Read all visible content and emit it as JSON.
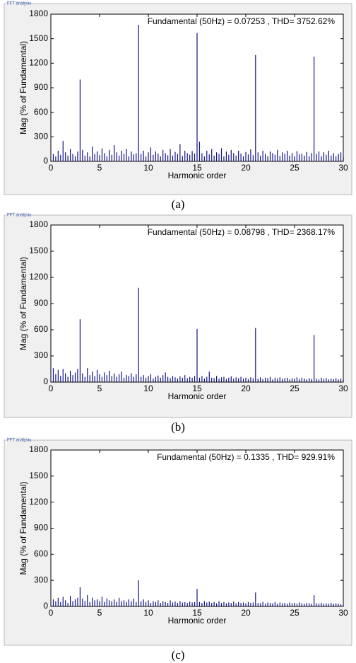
{
  "chart_data": [
    {
      "type": "bar",
      "panel_label": "FFT analysis",
      "annotation": "Fundamental (50Hz) = 0.07253 , THD= 3752.62%",
      "xlabel": "Harmonic order",
      "ylabel": "Mag (% of Fundamental)",
      "caption": "(a)",
      "color": "#10108a",
      "xlim": [
        0,
        30
      ],
      "ylim": [
        0,
        1800
      ],
      "xticks": [
        0,
        5,
        10,
        15,
        20,
        25,
        30
      ],
      "yticks": [
        0,
        300,
        600,
        900,
        1200,
        1500,
        1800
      ],
      "x": [
        0,
        0.25,
        0.5,
        0.75,
        1,
        1.25,
        1.5,
        1.75,
        2,
        2.25,
        2.5,
        2.75,
        3,
        3.25,
        3.5,
        3.75,
        4,
        4.25,
        4.5,
        4.75,
        5,
        5.25,
        5.5,
        5.75,
        6,
        6.25,
        6.5,
        6.75,
        7,
        7.25,
        7.5,
        7.75,
        8,
        8.25,
        8.5,
        8.75,
        9,
        9.25,
        9.5,
        9.75,
        10,
        10.25,
        10.5,
        10.75,
        11,
        11.25,
        11.5,
        11.75,
        12,
        12.25,
        12.5,
        12.75,
        13,
        13.25,
        13.5,
        13.75,
        14,
        14.25,
        14.5,
        14.75,
        15,
        15.25,
        15.5,
        15.75,
        16,
        16.25,
        16.5,
        16.75,
        17,
        17.25,
        17.5,
        17.75,
        18,
        18.25,
        18.5,
        18.75,
        19,
        19.25,
        19.5,
        19.75,
        20,
        20.25,
        20.5,
        20.75,
        21,
        21.25,
        21.5,
        21.75,
        22,
        22.25,
        22.5,
        22.75,
        23,
        23.25,
        23.5,
        23.75,
        24,
        24.25,
        24.5,
        24.75,
        25,
        25.25,
        25.5,
        25.75,
        26,
        26.25,
        26.5,
        26.75,
        27,
        27.25,
        27.5,
        27.75,
        28,
        28.25,
        28.5,
        28.75,
        29,
        29.25,
        29.5,
        29.75,
        30
      ],
      "values": [
        20,
        90,
        60,
        130,
        80,
        250,
        110,
        70,
        150,
        90,
        60,
        120,
        1000,
        140,
        70,
        110,
        60,
        180,
        90,
        120,
        75,
        160,
        100,
        60,
        140,
        80,
        200,
        110,
        70,
        130,
        90,
        150,
        60,
        120,
        85,
        100,
        1670,
        90,
        130,
        60,
        110,
        170,
        80,
        120,
        95,
        60,
        140,
        100,
        75,
        150,
        70,
        115,
        90,
        210,
        65,
        130,
        100,
        80,
        125,
        95,
        1570,
        240,
        100,
        60,
        130,
        85,
        150,
        70,
        110,
        90,
        160,
        60,
        120,
        80,
        140,
        100,
        70,
        130,
        95,
        60,
        115,
        85,
        145,
        75,
        1300,
        110,
        70,
        130,
        90,
        60,
        120,
        100,
        80,
        140,
        65,
        110,
        90,
        130,
        70,
        100,
        60,
        125,
        85,
        95,
        70,
        115,
        60,
        100,
        1280,
        90,
        120,
        60,
        110,
        80,
        130,
        70,
        100,
        60,
        90,
        110,
        50
      ]
    },
    {
      "type": "bar",
      "panel_label": "FFT analysis",
      "annotation": "Fundamental (50Hz) = 0.08798 , THD= 2368.17%",
      "xlabel": "Harmonic order",
      "ylabel": "Mag (% of Fundamental)",
      "caption": "(b)",
      "color": "#10108a",
      "xlim": [
        0,
        30
      ],
      "ylim": [
        0,
        1800
      ],
      "xticks": [
        0,
        5,
        10,
        15,
        20,
        25,
        30
      ],
      "yticks": [
        0,
        300,
        600,
        900,
        1200,
        1500,
        1800
      ],
      "x": [
        0,
        0.25,
        0.5,
        0.75,
        1,
        1.25,
        1.5,
        1.75,
        2,
        2.25,
        2.5,
        2.75,
        3,
        3.25,
        3.5,
        3.75,
        4,
        4.25,
        4.5,
        4.75,
        5,
        5.25,
        5.5,
        5.75,
        6,
        6.25,
        6.5,
        6.75,
        7,
        7.25,
        7.5,
        7.75,
        8,
        8.25,
        8.5,
        8.75,
        9,
        9.25,
        9.5,
        9.75,
        10,
        10.25,
        10.5,
        10.75,
        11,
        11.25,
        11.5,
        11.75,
        12,
        12.25,
        12.5,
        12.75,
        13,
        13.25,
        13.5,
        13.75,
        14,
        14.25,
        14.5,
        14.75,
        15,
        15.25,
        15.5,
        15.75,
        16,
        16.25,
        16.5,
        16.75,
        17,
        17.25,
        17.5,
        17.75,
        18,
        18.25,
        18.5,
        18.75,
        19,
        19.25,
        19.5,
        19.75,
        20,
        20.25,
        20.5,
        20.75,
        21,
        21.25,
        21.5,
        21.75,
        22,
        22.25,
        22.5,
        22.75,
        23,
        23.25,
        23.5,
        23.75,
        24,
        24.25,
        24.5,
        24.75,
        25,
        25.25,
        25.5,
        25.75,
        26,
        26.25,
        26.5,
        26.75,
        27,
        27.25,
        27.5,
        27.75,
        28,
        28.25,
        28.5,
        28.75,
        29,
        29.25,
        29.5,
        29.75,
        30
      ],
      "values": [
        10,
        160,
        90,
        140,
        70,
        150,
        100,
        60,
        130,
        80,
        110,
        150,
        720,
        100,
        60,
        160,
        80,
        120,
        70,
        140,
        90,
        60,
        110,
        80,
        130,
        70,
        100,
        60,
        90,
        120,
        50,
        80,
        70,
        100,
        60,
        90,
        1080,
        60,
        80,
        50,
        70,
        90,
        40,
        60,
        75,
        50,
        80,
        110,
        60,
        45,
        70,
        55,
        40,
        65,
        50,
        80,
        45,
        60,
        50,
        70,
        610,
        50,
        70,
        40,
        60,
        120,
        50,
        45,
        70,
        40,
        55,
        60,
        35,
        50,
        65,
        40,
        55,
        45,
        60,
        40,
        50,
        35,
        55,
        45,
        620,
        40,
        55,
        35,
        50,
        45,
        60,
        30,
        50,
        40,
        55,
        35,
        45,
        50,
        30,
        45,
        40,
        55,
        35,
        50,
        40,
        30,
        45,
        35,
        540,
        40,
        30,
        50,
        35,
        45,
        30,
        40,
        35,
        45,
        30,
        40,
        30
      ]
    },
    {
      "type": "bar",
      "panel_label": "FFT analysis",
      "annotation": "Fundamental (50Hz) = 0.1335 , THD= 929.91%",
      "xlabel": "Harmonic order",
      "ylabel": "Mag (% of Fundamental)",
      "caption": "(c)",
      "color": "#10108a",
      "xlim": [
        0,
        30
      ],
      "ylim": [
        0,
        1800
      ],
      "xticks": [
        0,
        5,
        10,
        15,
        20,
        25,
        30
      ],
      "yticks": [
        0,
        300,
        600,
        900,
        1200,
        1500,
        1800
      ],
      "x": [
        0,
        0.25,
        0.5,
        0.75,
        1,
        1.25,
        1.5,
        1.75,
        2,
        2.25,
        2.5,
        2.75,
        3,
        3.25,
        3.5,
        3.75,
        4,
        4.25,
        4.5,
        4.75,
        5,
        5.25,
        5.5,
        5.75,
        6,
        6.25,
        6.5,
        6.75,
        7,
        7.25,
        7.5,
        7.75,
        8,
        8.25,
        8.5,
        8.75,
        9,
        9.25,
        9.5,
        9.75,
        10,
        10.25,
        10.5,
        10.75,
        11,
        11.25,
        11.5,
        11.75,
        12,
        12.25,
        12.5,
        12.75,
        13,
        13.25,
        13.5,
        13.75,
        14,
        14.25,
        14.5,
        14.75,
        15,
        15.25,
        15.5,
        15.75,
        16,
        16.25,
        16.5,
        16.75,
        17,
        17.25,
        17.5,
        17.75,
        18,
        18.25,
        18.5,
        18.75,
        19,
        19.25,
        19.5,
        19.75,
        20,
        20.25,
        20.5,
        20.75,
        21,
        21.25,
        21.5,
        21.75,
        22,
        22.25,
        22.5,
        22.75,
        23,
        23.25,
        23.5,
        23.75,
        24,
        24.25,
        24.5,
        24.75,
        25,
        25.25,
        25.5,
        25.75,
        26,
        26.25,
        26.5,
        26.75,
        27,
        27.25,
        27.5,
        27.75,
        28,
        28.25,
        28.5,
        28.75,
        29,
        29.25,
        29.5,
        29.75,
        30
      ],
      "values": [
        10,
        80,
        60,
        100,
        50,
        110,
        70,
        40,
        120,
        60,
        80,
        100,
        220,
        90,
        60,
        130,
        50,
        100,
        70,
        80,
        60,
        110,
        50,
        90,
        70,
        60,
        80,
        50,
        100,
        60,
        70,
        50,
        80,
        60,
        90,
        50,
        300,
        60,
        80,
        50,
        70,
        40,
        60,
        50,
        70,
        40,
        60,
        50,
        40,
        70,
        45,
        55,
        40,
        60,
        45,
        50,
        40,
        55,
        45,
        50,
        200,
        50,
        40,
        60,
        45,
        55,
        40,
        50,
        35,
        60,
        40,
        50,
        35,
        45,
        40,
        55,
        35,
        50,
        40,
        45,
        35,
        50,
        40,
        45,
        160,
        40,
        35,
        50,
        30,
        45,
        40,
        35,
        50,
        30,
        45,
        35,
        40,
        30,
        45,
        35,
        40,
        30,
        45,
        35,
        30,
        40,
        35,
        30,
        130,
        35,
        30,
        40,
        30,
        35,
        30,
        40,
        30,
        35,
        30,
        25,
        20
      ]
    }
  ]
}
